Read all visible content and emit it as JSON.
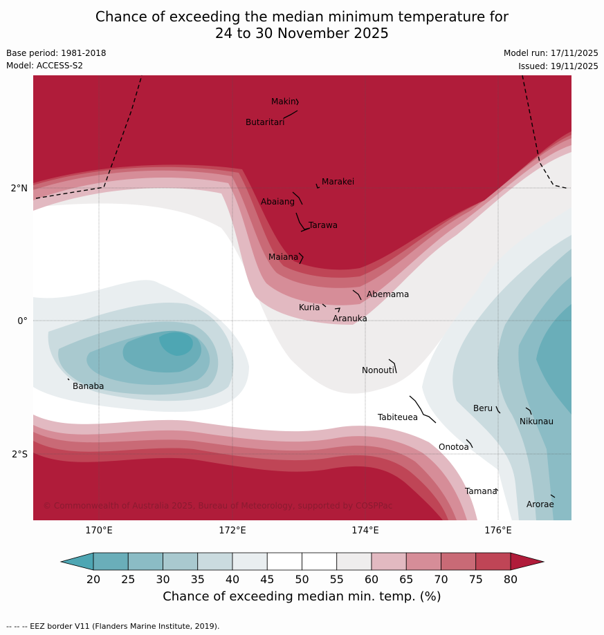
{
  "title_line1": "Chance of exceeding the median minimum temperature for",
  "title_line2": "24 to 30 November 2025",
  "base_period": "Base period: 1981-2018",
  "model": "Model: ACCESS-S2",
  "model_run": "Model run: 17/11/2025",
  "issued": "Issued: 19/11/2025",
  "copyright": "© Commonwealth of Australia 2025, Bureau of Meteorology, supported by COSPPac",
  "footer_note": "--  --  -- EEZ border V11 (Flanders Marine Institute, 2019).",
  "colorbar": {
    "label": "Chance of exceeding median min. temp. (%)",
    "ticks": [
      "20",
      "25",
      "30",
      "35",
      "40",
      "45",
      "50",
      "55",
      "60",
      "65",
      "70",
      "75",
      "80"
    ],
    "low_color": "#4ea6b3",
    "high_color": "#b01c3a",
    "bins": [
      "#6aaeb9",
      "#8bbcc5",
      "#a9c9cf",
      "#cadbdf",
      "#e9eef0",
      "#ffffff",
      "#ffffff",
      "#efeded",
      "#e2b9c1",
      "#d68d98",
      "#c96a76",
      "#bf4556"
    ]
  },
  "axes": {
    "lon_labels": [
      "170°E",
      "172°E",
      "174°E",
      "176°E"
    ],
    "lat_labels": [
      "2°N",
      "0°",
      "2°S"
    ]
  },
  "islands": [
    {
      "name": "Makin"
    },
    {
      "name": "Butaritari"
    },
    {
      "name": "Marakei"
    },
    {
      "name": "Abaiang"
    },
    {
      "name": "Tarawa"
    },
    {
      "name": "Maiana"
    },
    {
      "name": "Abemama"
    },
    {
      "name": "Kuria"
    },
    {
      "name": "Aranuka"
    },
    {
      "name": "Banaba"
    },
    {
      "name": "Nonouti"
    },
    {
      "name": "Tabiteuea"
    },
    {
      "name": "Beru"
    },
    {
      "name": "Nikunau"
    },
    {
      "name": "Onotoa"
    },
    {
      "name": "Tamana"
    },
    {
      "name": "Arorae"
    }
  ]
}
